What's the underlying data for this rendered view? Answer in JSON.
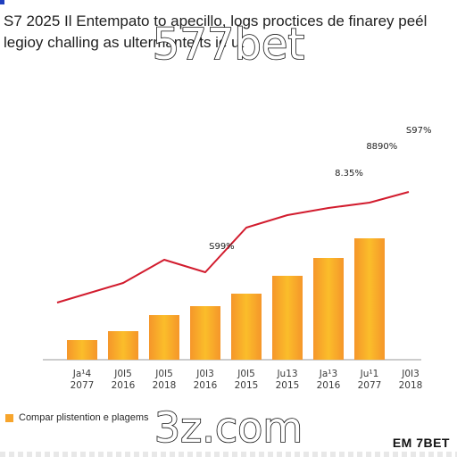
{
  "header": {
    "line1": "S7 2025 Il Entempato to apecillo, logs proctices de finarey peél",
    "line2": "legioy challing as ultermante ts ie ut"
  },
  "watermarks": {
    "top": "577bet",
    "bottom": "3z.com"
  },
  "legend": {
    "label": "Compar plistention e plagems"
  },
  "brand": {
    "name": "EM 7BET"
  },
  "colors": {
    "bar_light": "#fbbd2a",
    "bar_dark": "#f5962a",
    "line": "#d21c2e",
    "axis": "#9a9a9a",
    "accent": "#1f3fbf"
  },
  "chart_data": {
    "type": "bar",
    "categories": [
      [
        "Ja¹4",
        "2077"
      ],
      [
        "J0I5",
        "2016"
      ],
      [
        "J0I5",
        "2018"
      ],
      [
        "J0I3",
        "2016"
      ],
      [
        "J0I5",
        "2015"
      ],
      [
        "Ju13",
        "2015"
      ],
      [
        "Ja¹3",
        "2016"
      ],
      [
        "Ju¹1",
        "2077"
      ],
      [
        "J0I3",
        "2018"
      ]
    ],
    "series": [
      {
        "values": [
          22,
          32,
          50,
          60,
          74,
          94,
          114,
          136,
          null
        ]
      },
      {
        "x": [
          0,
          1,
          2,
          3,
          4,
          5,
          6,
          7,
          8
        ],
        "values": [
          64,
          86,
          112,
          98,
          148,
          162,
          170,
          176,
          188
        ]
      }
    ],
    "annotations": [
      {
        "text": "S99%",
        "x": 3.4,
        "y": 124
      },
      {
        "text": "8.35%",
        "x": 6.5,
        "y": 206
      },
      {
        "text": "8890%",
        "x": 7.3,
        "y": 236
      },
      {
        "text": "S97%",
        "x": 8.2,
        "y": 254
      }
    ]
  }
}
